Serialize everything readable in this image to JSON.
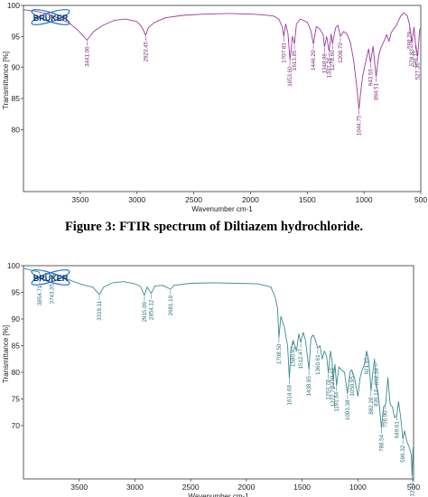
{
  "figure_caption": "Figure 3: FTIR spectrum of Diltiazem hydrochloride.",
  "logo_text": "BRUKER",
  "chart_data": [
    {
      "type": "line",
      "xlabel": "Wavenumber cm-1",
      "ylabel": "Transmittance [%]",
      "xlim": [
        4000,
        500
      ],
      "ylim": [
        70,
        100
      ],
      "xticks": [
        3500,
        3000,
        2500,
        2000,
        1500,
        1000,
        500
      ],
      "yticks": [
        100,
        95,
        90,
        85,
        80
      ],
      "grid": false,
      "line_color": "#9b3a9b",
      "series": [
        {
          "x": [
            4000,
            3900,
            3800,
            3700,
            3600,
            3520,
            3460,
            3441,
            3420,
            3380,
            3300,
            3200,
            3100,
            3000,
            2960,
            2923,
            2900,
            2850,
            2750,
            2600,
            2400,
            2200,
            2000,
            1900,
            1800,
            1750,
            1720,
            1707,
            1690,
            1670,
            1653,
            1630,
            1613,
            1595,
            1560,
            1500,
            1470,
            1446,
            1420,
            1390,
            1360,
            1348,
            1330,
            1307,
            1290,
            1278,
            1250,
            1230,
            1208,
            1180,
            1150,
            1120,
            1090,
            1065,
            1044,
            1030,
            1010,
            990,
            960,
            943,
            920,
            894,
            870,
            850,
            830,
            800,
            780,
            760,
            740,
            720,
            700,
            680,
            650,
            620,
            600,
            578,
            560,
            546,
            527,
            510,
            500
          ],
          "y": [
            99.3,
            99.1,
            98.7,
            98.0,
            97.2,
            96.0,
            94.8,
            94.4,
            94.9,
            95.8,
            96.8,
            97.6,
            97.8,
            97.4,
            96.6,
            95.2,
            96.4,
            97.2,
            98.0,
            98.4,
            98.6,
            98.7,
            98.6,
            98.5,
            98.3,
            97.8,
            96.5,
            95.0,
            97.0,
            95.5,
            91.2,
            95.0,
            93.8,
            97.0,
            97.8,
            97.3,
            96.0,
            93.8,
            96.6,
            96.2,
            95.3,
            93.3,
            95.0,
            92.6,
            95.4,
            93.8,
            96.4,
            96.8,
            95.0,
            95.8,
            95.4,
            94.0,
            91.0,
            87.0,
            83.3,
            86.0,
            88.8,
            90.5,
            93.0,
            90.8,
            93.4,
            88.5,
            92.0,
            93.2,
            94.0,
            95.3,
            94.2,
            95.6,
            96.2,
            96.6,
            97.4,
            98.2,
            98.8,
            98.4,
            97.0,
            94.0,
            96.5,
            93.8,
            91.8,
            96.0,
            96.5
          ]
        }
      ],
      "peaks": [
        {
          "x": 3441,
          "y": 94.4,
          "label": "3441.06"
        },
        {
          "x": 2923,
          "y": 95.2,
          "label": "2923.45"
        },
        {
          "x": 1707,
          "y": 95.0,
          "label": "1707.83"
        },
        {
          "x": 1653,
          "y": 91.2,
          "label": "1653.60"
        },
        {
          "x": 1613,
          "y": 93.8,
          "label": "1613.85"
        },
        {
          "x": 1446,
          "y": 93.8,
          "label": "1446.20"
        },
        {
          "x": 1348,
          "y": 93.3,
          "label": "1348.89"
        },
        {
          "x": 1307,
          "y": 92.6,
          "label": "1307.26"
        },
        {
          "x": 1278,
          "y": 93.8,
          "label": "1278.60"
        },
        {
          "x": 1208,
          "y": 95.0,
          "label": "1208.70"
        },
        {
          "x": 1044,
          "y": 83.3,
          "label": "1044.75"
        },
        {
          "x": 943,
          "y": 90.8,
          "label": "943.56"
        },
        {
          "x": 894,
          "y": 88.5,
          "label": "894.51"
        },
        {
          "x": 598,
          "y": 96.8,
          "label": "598.29"
        },
        {
          "x": 578,
          "y": 94.0,
          "label": "578.83"
        },
        {
          "x": 546,
          "y": 93.8,
          "label": "546.15"
        },
        {
          "x": 527,
          "y": 91.8,
          "label": "527.36"
        }
      ]
    },
    {
      "type": "line",
      "xlabel": "Wavenumber cm-1",
      "ylabel": "Transmittance [%]",
      "xlim": [
        4000,
        500
      ],
      "ylim": [
        60,
        100
      ],
      "xticks": [
        3500,
        3000,
        2500,
        2000,
        1500,
        1000,
        500
      ],
      "yticks": [
        100,
        95,
        90,
        85,
        80,
        75,
        70
      ],
      "grid": false,
      "line_color": "#3a8a90",
      "series": [
        {
          "x": [
            4000,
            3900,
            3860,
            3840,
            3800,
            3760,
            3743,
            3720,
            3650,
            3550,
            3450,
            3380,
            3319,
            3280,
            3200,
            3100,
            3000,
            2950,
            2915,
            2890,
            2854,
            2820,
            2750,
            2681,
            2650,
            2500,
            2300,
            2100,
            1900,
            1780,
            1740,
            1720,
            1708,
            1690,
            1660,
            1630,
            1614,
            1600,
            1580,
            1550,
            1530,
            1512,
            1490,
            1470,
            1438,
            1420,
            1400,
            1380,
            1360,
            1340,
            1320,
            1300,
            1280,
            1264,
            1245,
            1230,
            1222,
            1205,
            1191,
            1170,
            1150,
            1120,
            1093,
            1070,
            1055,
            1030,
            1000,
            980,
            960,
            940,
            921,
            900,
            882,
            865,
            850,
            836,
            820,
            810,
            788,
            770,
            750,
            730,
            710,
            690,
            670,
            650,
            635,
            615,
            596,
            580,
            560,
            540,
            520,
            513,
            505,
            500
          ],
          "y": [
            99.5,
            99.0,
            98.8,
            97.5,
            98.6,
            98.4,
            97.8,
            98.5,
            97.9,
            97.0,
            96.3,
            96.0,
            94.6,
            96.0,
            96.8,
            97.0,
            96.6,
            96.1,
            94.4,
            96.0,
            94.8,
            96.2,
            96.3,
            95.6,
            96.3,
            96.7,
            96.8,
            96.7,
            96.6,
            96.0,
            94.0,
            92.0,
            86.5,
            90.5,
            88.5,
            85.0,
            78.8,
            84.5,
            86.0,
            84.0,
            87.2,
            85.6,
            87.5,
            86.0,
            80.5,
            86.5,
            87.0,
            86.0,
            84.5,
            85.0,
            82.5,
            84.0,
            83.0,
            79.8,
            84.0,
            82.0,
            78.5,
            81.5,
            77.5,
            81.0,
            80.5,
            80.0,
            76.0,
            80.0,
            80.5,
            79.0,
            75.5,
            79.0,
            80.5,
            81.5,
            84.0,
            82.0,
            76.5,
            80.0,
            82.5,
            78.0,
            76.5,
            74.5,
            69.5,
            73.5,
            74.0,
            79.0,
            74.0,
            73.5,
            71.5,
            72.0,
            74.5,
            71.5,
            67.5,
            69.0,
            67.0,
            66.0,
            64.5,
            60.5,
            65.5,
            66.5
          ]
        }
      ],
      "peaks": [
        {
          "x": 3854,
          "y": 97.5,
          "label": "3854.71"
        },
        {
          "x": 3743,
          "y": 97.8,
          "label": "3743.35"
        },
        {
          "x": 3319,
          "y": 94.6,
          "label": "3319.11"
        },
        {
          "x": 2915,
          "y": 94.4,
          "label": "2915.09"
        },
        {
          "x": 2854,
          "y": 94.8,
          "label": "2854.12"
        },
        {
          "x": 2681,
          "y": 95.6,
          "label": "2681.19"
        },
        {
          "x": 1708,
          "y": 86.5,
          "label": "1708.50"
        },
        {
          "x": 1614,
          "y": 78.8,
          "label": "1614.68"
        },
        {
          "x": 1580,
          "y": 86.0,
          "label": "1580.92"
        },
        {
          "x": 1512,
          "y": 85.6,
          "label": "1512.47"
        },
        {
          "x": 1438,
          "y": 80.5,
          "label": "1438.95"
        },
        {
          "x": 1360,
          "y": 84.5,
          "label": "1360.61"
        },
        {
          "x": 1264,
          "y": 79.8,
          "label": "1263.78"
        },
        {
          "x": 1230,
          "y": 82.0,
          "label": "1230.43"
        },
        {
          "x": 1222,
          "y": 78.5,
          "label": "1222.71"
        },
        {
          "x": 1191,
          "y": 77.5,
          "label": "1191.64"
        },
        {
          "x": 1093,
          "y": 76.0,
          "label": "1093.38"
        },
        {
          "x": 1050,
          "y": 80.5,
          "label": "1050.95"
        },
        {
          "x": 921,
          "y": 84.0,
          "label": "921.91"
        },
        {
          "x": 882,
          "y": 76.5,
          "label": "882.28"
        },
        {
          "x": 836,
          "y": 78.0,
          "label": "836.14"
        },
        {
          "x": 832,
          "y": 82.0,
          "label": "832.34"
        },
        {
          "x": 788,
          "y": 69.5,
          "label": "788.54"
        },
        {
          "x": 756,
          "y": 74.0,
          "label": "756.90"
        },
        {
          "x": 649,
          "y": 72.0,
          "label": "649.61"
        },
        {
          "x": 596,
          "y": 67.5,
          "label": "596.32"
        },
        {
          "x": 513,
          "y": 60.5,
          "label": "513.14"
        }
      ]
    }
  ]
}
